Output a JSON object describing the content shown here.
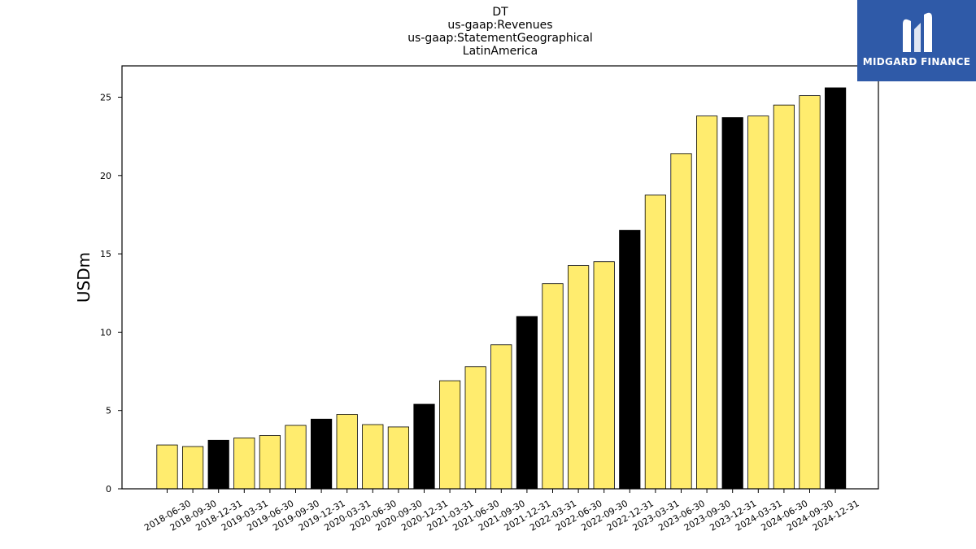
{
  "title_lines": [
    "DT",
    "us-gaap:Revenues",
    "us-gaap:StatementGeographical",
    "LatinAmerica"
  ],
  "logo": {
    "text": "MIDGARD FINANCE",
    "icon": "midgard-logo-icon",
    "background": "#2f5aa8"
  },
  "colors": {
    "bar_default": "#ffec6e",
    "bar_highlight": "#000000",
    "edge": "#000000"
  },
  "chart_data": {
    "type": "bar",
    "ylabel": "USDm",
    "ylim": [
      0,
      27
    ],
    "yticks": [
      0,
      5,
      10,
      15,
      20,
      25
    ],
    "grid": false,
    "categories": [
      "2018-06-30",
      "2018-09-30",
      "2018-12-31",
      "2019-03-31",
      "2019-06-30",
      "2019-09-30",
      "2019-12-31",
      "2020-03-31",
      "2020-06-30",
      "2020-09-30",
      "2020-12-31",
      "2021-03-31",
      "2021-06-30",
      "2021-09-30",
      "2021-12-31",
      "2022-03-31",
      "2022-06-30",
      "2022-09-30",
      "2022-12-31",
      "2023-03-31",
      "2023-06-30",
      "2023-09-30",
      "2023-12-31",
      "2024-03-31",
      "2024-06-30",
      "2024-09-30",
      "2024-12-31"
    ],
    "values": [
      2.8,
      2.7,
      3.1,
      3.25,
      3.4,
      4.05,
      4.45,
      4.75,
      4.1,
      3.95,
      5.4,
      6.9,
      7.8,
      9.2,
      11.0,
      13.1,
      14.25,
      14.5,
      16.5,
      18.75,
      21.4,
      23.8,
      23.7,
      23.8,
      24.5,
      25.1,
      25.6
    ],
    "highlight": [
      false,
      false,
      true,
      false,
      false,
      false,
      true,
      false,
      false,
      false,
      true,
      false,
      false,
      false,
      true,
      false,
      false,
      false,
      true,
      false,
      false,
      false,
      true,
      false,
      false,
      false,
      true
    ]
  }
}
